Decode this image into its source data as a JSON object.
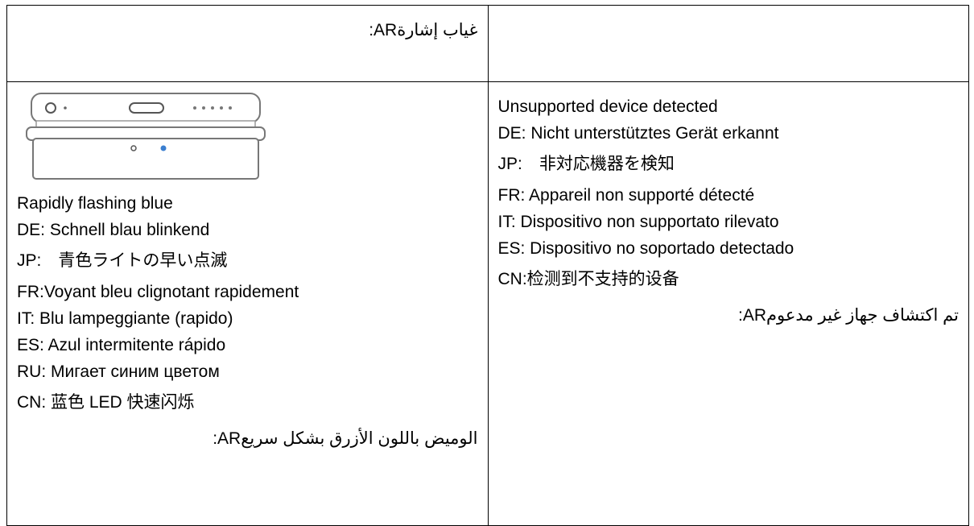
{
  "table": {
    "rows": [
      [
        {
          "lines": [
            ":ARغياب إشارة"
          ]
        },
        {
          "lines": []
        }
      ],
      [
        {
          "lines": [
            "Rapidly flashing blue",
            "DE: Schnell blau blinkend",
            "JP:　青色ライトの早い点滅",
            "FR:Voyant bleu clignotant rapidement",
            "IT: Blu lampeggiante (rapido)",
            "ES: Azul intermitente rápido",
            "RU: Мигает синим цветом",
            "CN: 蓝色 LED 快速闪烁",
            ":ARالوميض باللون الأزرق بشكل سريع"
          ]
        },
        {
          "lines": [
            "Unsupported device detected",
            "DE: Nicht unterstütztes Gerät erkannt",
            "JP:　非対応機器を検知",
            "FR: Appareil non supporté détecté",
            "IT: Dispositivo non supportato rilevato",
            "ES: Dispositivo no soportado detectado",
            "CN:检测到不支持的设备",
            ":ARتم اكتشاف جهاز غير مدعوم"
          ]
        }
      ]
    ]
  }
}
